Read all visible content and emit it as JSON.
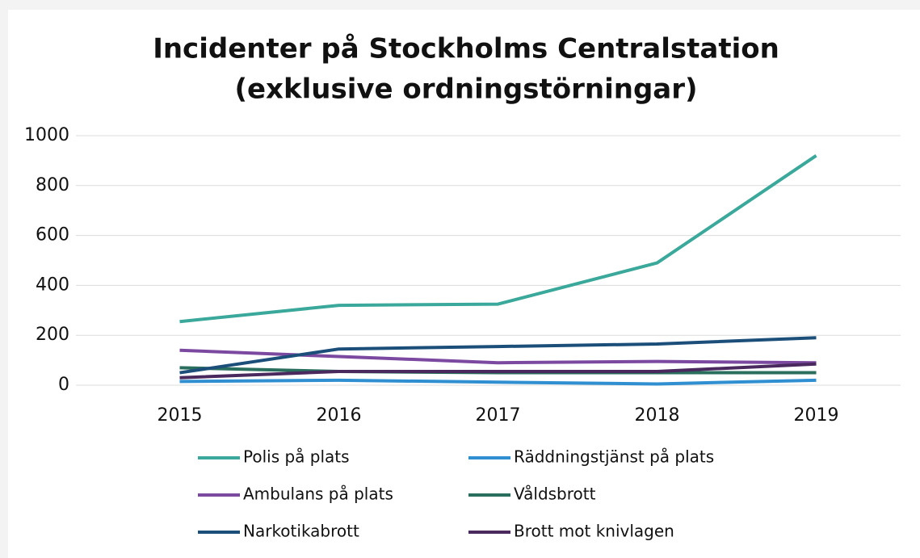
{
  "chart_data": {
    "type": "line",
    "title": "Incidenter på Stockholms Centralstation",
    "subtitle": "(exklusive ordningstörningar)",
    "categories": [
      "2015",
      "2016",
      "2017",
      "2018",
      "2019"
    ],
    "series": [
      {
        "name": "Polis på plats",
        "color": "#3aa89a",
        "values": [
          255,
          320,
          325,
          490,
          920
        ]
      },
      {
        "name": "Räddningstjänst på plats",
        "color": "#2f8fd0",
        "values": [
          15,
          20,
          12,
          5,
          20
        ]
      },
      {
        "name": "Ambulans på plats",
        "color": "#7b4aa0",
        "values": [
          140,
          115,
          90,
          95,
          90
        ]
      },
      {
        "name": "Våldsbrott",
        "color": "#2a6e5e",
        "values": [
          70,
          55,
          50,
          50,
          50
        ]
      },
      {
        "name": "Narkotikabrott",
        "color": "#1c4e7a",
        "values": [
          50,
          145,
          155,
          165,
          190
        ]
      },
      {
        "name": "Brott mot knivlagen",
        "color": "#4a2a5e",
        "values": [
          30,
          55,
          55,
          55,
          85
        ]
      }
    ],
    "ylim": [
      0,
      1000
    ],
    "yticks": [
      0,
      200,
      400,
      600,
      800,
      1000
    ],
    "grid": true,
    "legend": "bottom"
  }
}
